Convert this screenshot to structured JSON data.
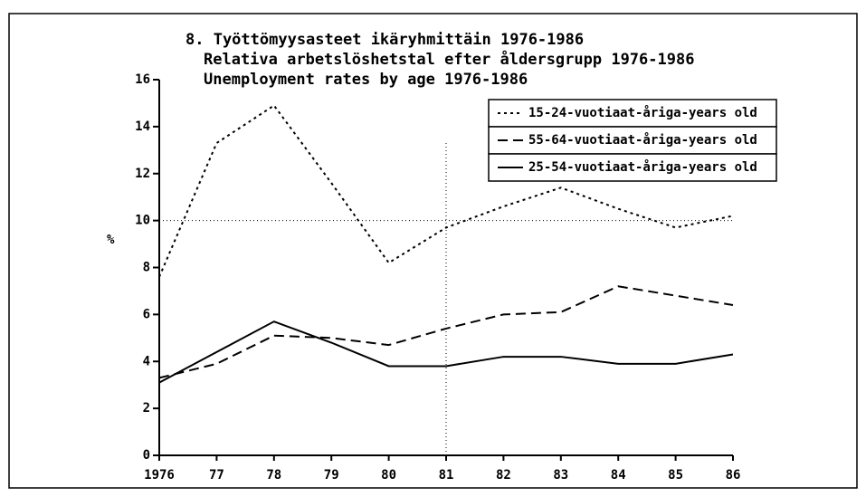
{
  "chart_data": {
    "type": "line",
    "title": "8. Työttömyysasteet ikäryhmittäin 1976-1986",
    "subtitle": [
      "Relativa arbetslöshetstal efter åldersgrupp 1976-1986",
      "Unemployment rates by age 1976-1986"
    ],
    "y_label": "%",
    "categories": [
      "1976",
      "77",
      "78",
      "79",
      "80",
      "81",
      "82",
      "83",
      "84",
      "85",
      "86"
    ],
    "series": [
      {
        "name": "15-24-vuotiaat-åriga-years old",
        "color": "#000000",
        "dash": "dotted",
        "values": [
          7.6,
          13.3,
          14.9,
          11.6,
          8.2,
          9.7,
          10.6,
          11.4,
          10.5,
          9.7,
          10.2
        ]
      },
      {
        "name": "55-64-vuotiaat-åriga-years old",
        "color": "#000000",
        "dash": "dashed",
        "values": [
          3.3,
          3.9,
          5.1,
          5.0,
          4.7,
          5.4,
          6.0,
          6.1,
          7.2,
          6.8,
          6.4
        ]
      },
      {
        "name": "25-54-vuotiaat-åriga-years old",
        "color": "#000000",
        "dash": "solid",
        "values": [
          3.1,
          4.4,
          5.7,
          4.8,
          3.8,
          3.8,
          4.2,
          4.2,
          3.9,
          3.9,
          4.3
        ]
      }
    ],
    "ylim": [
      0,
      16
    ],
    "yticks": [
      0,
      2,
      4,
      6,
      8,
      10,
      12,
      14,
      16
    ],
    "hlines": [
      10
    ],
    "vlines": [
      "81"
    ],
    "legend": "upper right"
  }
}
